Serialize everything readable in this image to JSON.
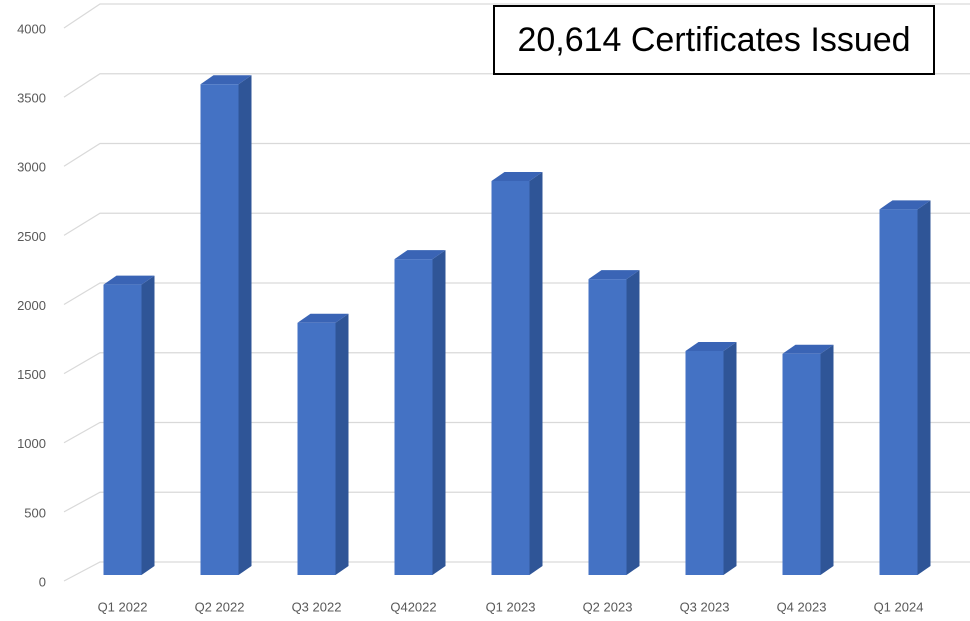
{
  "chart_data": {
    "type": "bar3d",
    "annotation": "20,614 Certificates Issued",
    "categories": [
      "Q1 2022",
      "Q2 2022",
      "Q3 2022",
      "Q42022",
      "Q1 2023",
      "Q2 2023",
      "Q3 2023",
      "Q4 2023",
      "Q1 2024"
    ],
    "values": [
      2100,
      3550,
      1825,
      2285,
      2850,
      2140,
      1620,
      1600,
      2645
    ],
    "color": "#4472c4",
    "ylim": [
      0,
      4000
    ],
    "yticks": [
      0,
      500,
      1000,
      1500,
      2000,
      2500,
      3000,
      3500,
      4000
    ],
    "grid": true
  }
}
